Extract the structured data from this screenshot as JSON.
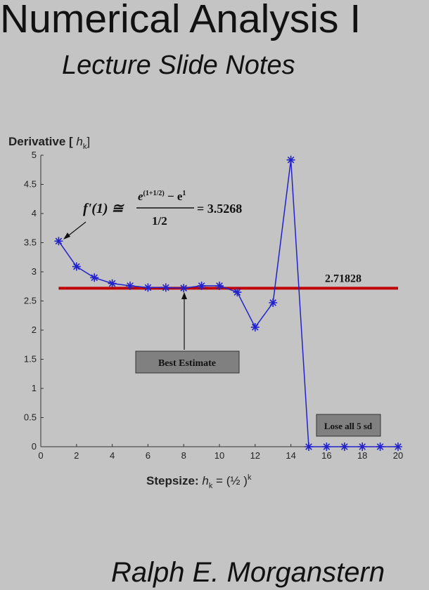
{
  "header": {
    "title": "Numerical Analysis I",
    "subtitle": "Lecture Slide Notes"
  },
  "author": "Ralph E. Morganstern",
  "chart_data": {
    "type": "line",
    "ylabel": [
      "Derivative [ ",
      "h",
      "k",
      "]"
    ],
    "xlabel": [
      "Stepsize: ",
      "h",
      "k",
      " =  (½ )",
      "k"
    ],
    "x": [
      1,
      2,
      3,
      4,
      5,
      6,
      7,
      8,
      9,
      10,
      11,
      12,
      13,
      14,
      15,
      16,
      17,
      18,
      19,
      20
    ],
    "series": [
      {
        "name": "Derivative",
        "color": "#2222cc",
        "values": [
          3.5268,
          3.09,
          2.9,
          2.8,
          2.76,
          2.73,
          2.73,
          2.72,
          2.76,
          2.76,
          2.65,
          2.05,
          2.47,
          4.92,
          0,
          0,
          0,
          0,
          0,
          0
        ]
      }
    ],
    "xlim": [
      0,
      20
    ],
    "xticks": [
      0,
      2,
      4,
      6,
      8,
      10,
      12,
      14,
      16,
      18,
      20
    ],
    "ylim": [
      0,
      5
    ],
    "yticks": [
      0,
      0.5,
      1,
      1.5,
      2,
      2.5,
      3,
      3.5,
      4,
      4.5,
      5
    ],
    "reference_line": {
      "value": 2.71828,
      "color": "#c00000"
    },
    "formula": {
      "lhs": "f'(1) ≅",
      "num_base": "e",
      "num_sup": "(1+1/2)",
      "num_mid": " − e",
      "num_sup2": "1",
      "den": "1/2",
      "rhs": "= 3.5268"
    },
    "annotations": [
      "Best Estimate",
      "Lose all 5 sd"
    ]
  }
}
